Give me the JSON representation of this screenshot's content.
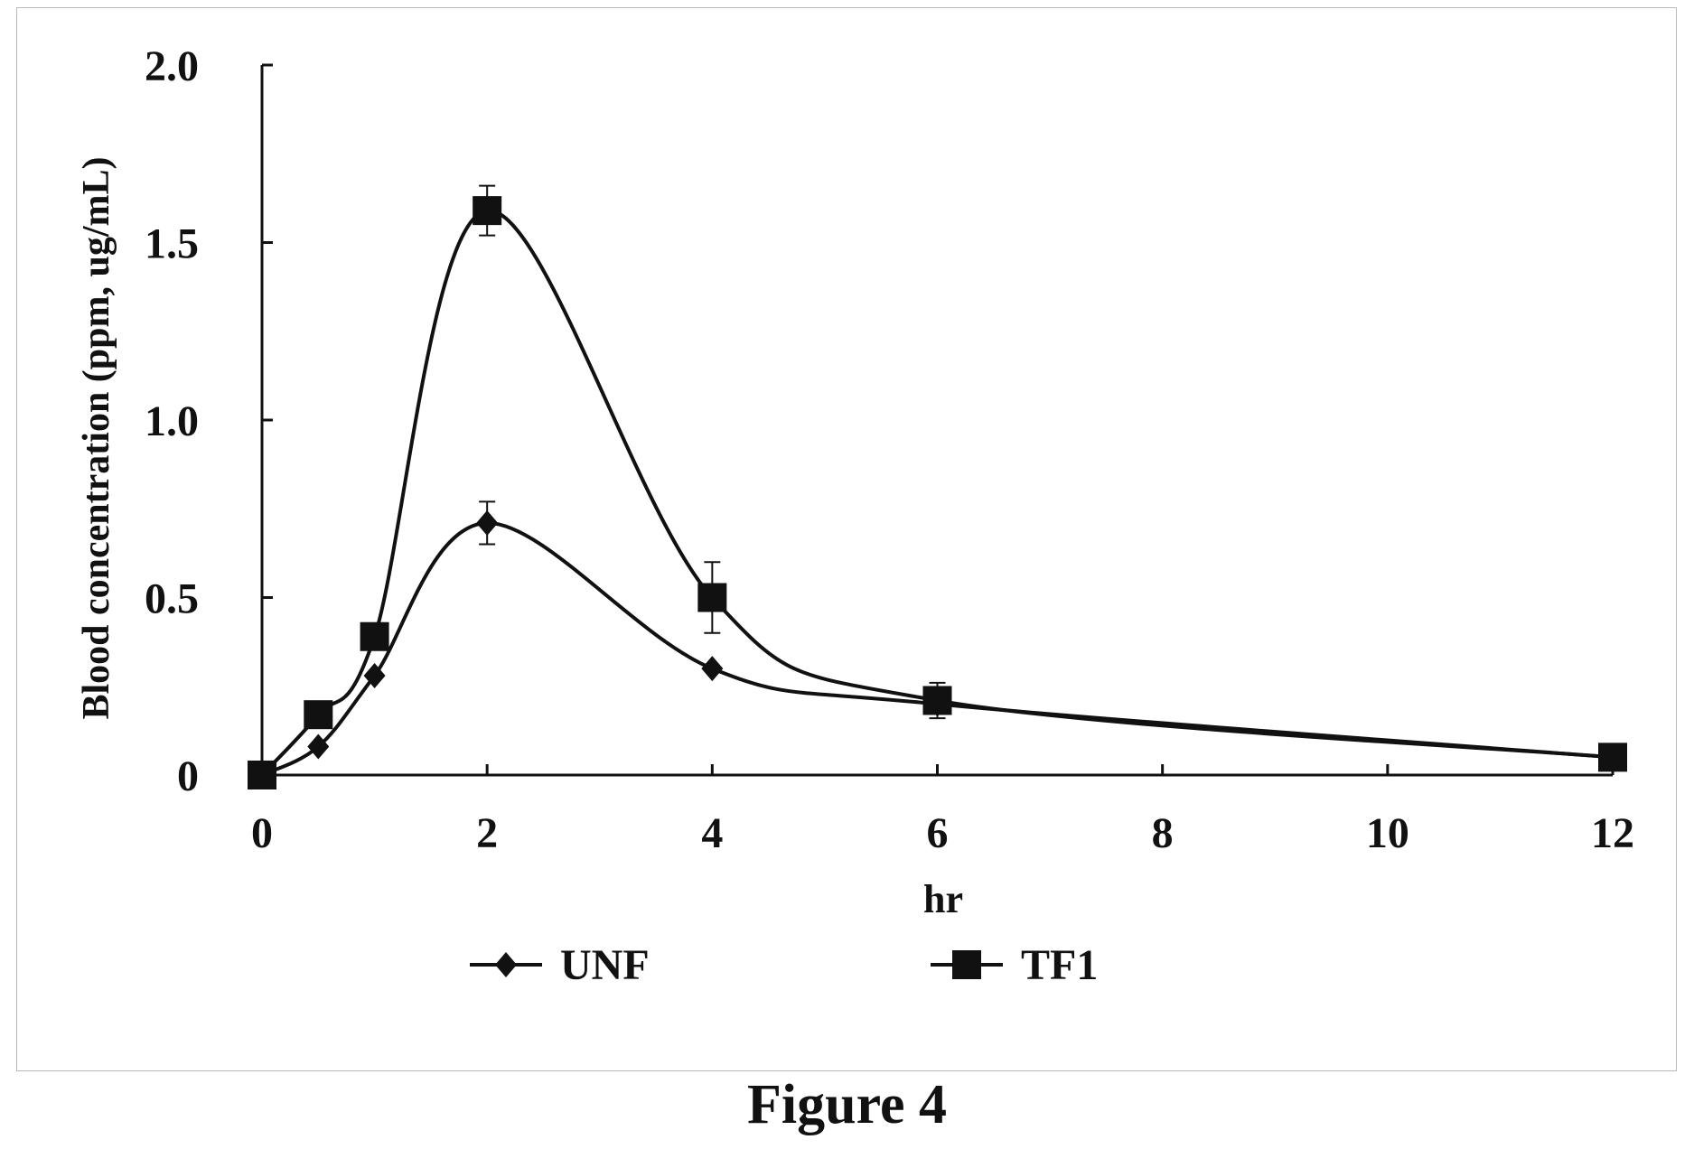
{
  "figure_caption": "Figure 4",
  "chart_data": {
    "type": "line",
    "title": "",
    "xlabel": "hr",
    "ylabel": "Blood concentration (ppm, ug/mL)",
    "xlim": [
      0,
      12
    ],
    "ylim": [
      0,
      2.0
    ],
    "x_ticks": [
      0,
      2,
      4,
      6,
      8,
      10,
      12
    ],
    "x_tick_labels": [
      "0",
      "2",
      "4",
      "6",
      "8",
      "10",
      "12"
    ],
    "y_ticks": [
      0,
      0.5,
      1.0,
      1.5,
      2.0
    ],
    "y_tick_labels": [
      "0",
      "0.5",
      "1.0",
      "1.5",
      "2.0"
    ],
    "grid": false,
    "legend_position": "bottom",
    "smooth": true,
    "series": [
      {
        "name": "UNF",
        "marker": "diamond",
        "color": "#111111",
        "x": [
          0,
          0.5,
          1,
          2,
          4,
          6,
          12
        ],
        "y": [
          0,
          0.08,
          0.28,
          0.71,
          0.3,
          0.2,
          0.05
        ],
        "error": [
          0,
          0,
          0,
          0.06,
          0,
          0,
          0
        ]
      },
      {
        "name": "TF1",
        "marker": "square",
        "color": "#111111",
        "x": [
          0,
          0.5,
          1,
          2,
          4,
          6,
          12
        ],
        "y": [
          0,
          0.17,
          0.39,
          1.59,
          0.5,
          0.21,
          0.05
        ],
        "error": [
          0,
          0,
          0,
          0.07,
          0.1,
          0.05,
          0
        ]
      }
    ]
  }
}
